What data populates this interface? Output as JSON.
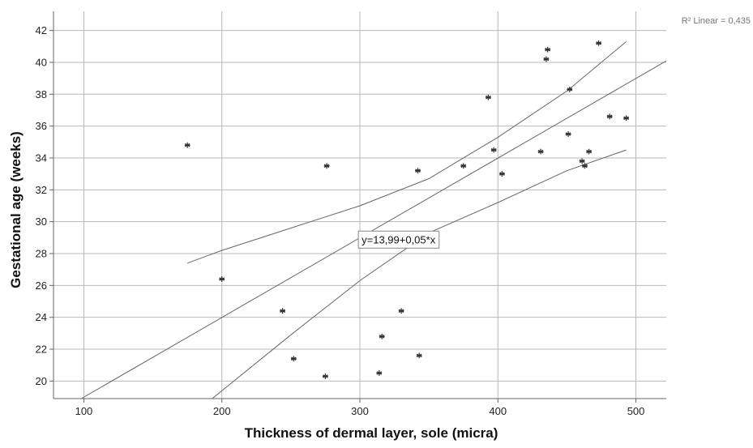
{
  "chart_data": {
    "type": "scatter",
    "title": "",
    "xlabel": "Thickness of dermal layer, sole (micra)",
    "ylabel": "Gestational age (weeks)",
    "xlim": [
      78,
      522
    ],
    "ylim": [
      18.9,
      43.2
    ],
    "x_ticks": [
      100,
      200,
      300,
      400,
      500
    ],
    "y_ticks": [
      20,
      22,
      24,
      26,
      28,
      30,
      32,
      34,
      36,
      38,
      40,
      42
    ],
    "grid": true,
    "marker": "asterisk",
    "points": [
      {
        "x": 175,
        "y": 34.8
      },
      {
        "x": 200,
        "y": 26.4
      },
      {
        "x": 244,
        "y": 24.4
      },
      {
        "x": 252,
        "y": 21.4
      },
      {
        "x": 275,
        "y": 20.3
      },
      {
        "x": 276,
        "y": 33.5
      },
      {
        "x": 314,
        "y": 20.5
      },
      {
        "x": 316,
        "y": 22.8
      },
      {
        "x": 330,
        "y": 24.4
      },
      {
        "x": 342,
        "y": 33.2
      },
      {
        "x": 343,
        "y": 21.6
      },
      {
        "x": 375,
        "y": 33.5
      },
      {
        "x": 393,
        "y": 37.8
      },
      {
        "x": 397,
        "y": 34.5
      },
      {
        "x": 403,
        "y": 33.0
      },
      {
        "x": 431,
        "y": 34.4
      },
      {
        "x": 435,
        "y": 40.2
      },
      {
        "x": 436,
        "y": 40.8
      },
      {
        "x": 451,
        "y": 35.5
      },
      {
        "x": 452,
        "y": 38.3
      },
      {
        "x": 461,
        "y": 33.8
      },
      {
        "x": 463,
        "y": 33.5
      },
      {
        "x": 466,
        "y": 34.4
      },
      {
        "x": 473,
        "y": 41.2
      },
      {
        "x": 481,
        "y": 36.6
      },
      {
        "x": 493,
        "y": 36.5
      }
    ],
    "fit_line": {
      "intercept": 13.99,
      "slope": 0.05
    },
    "fit_equation_label": "y=13,99+0,05*x",
    "confidence_upper": [
      [
        175,
        27.4
      ],
      [
        200,
        28.2
      ],
      [
        250,
        29.6
      ],
      [
        300,
        31.0
      ],
      [
        350,
        32.7
      ],
      [
        400,
        35.3
      ],
      [
        450,
        38.2
      ],
      [
        493,
        41.3
      ]
    ],
    "confidence_lower": [
      [
        193,
        18.9
      ],
      [
        250,
        22.9
      ],
      [
        300,
        26.3
      ],
      [
        350,
        29.3
      ],
      [
        400,
        31.2
      ],
      [
        450,
        33.2
      ],
      [
        493,
        34.5
      ]
    ],
    "r2_label": "R² Linear = 0,435"
  }
}
